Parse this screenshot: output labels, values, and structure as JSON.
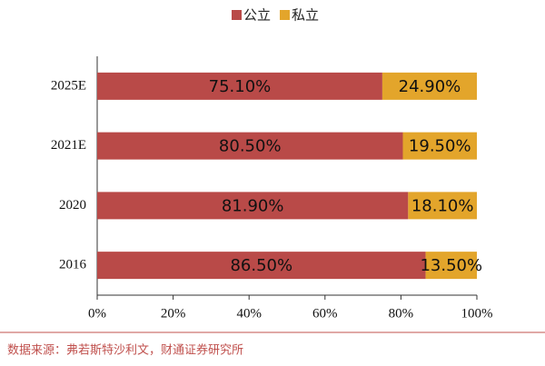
{
  "chart_data": {
    "type": "stacked_barh",
    "categories": [
      "2025E",
      "2021E",
      "2020",
      "2016"
    ],
    "series": [
      {
        "name": "公立",
        "color": "#b94a48",
        "values": [
          75.1,
          80.5,
          81.9,
          86.5
        ],
        "value_labels": [
          "75.10%",
          "80.50%",
          "81.90%",
          "86.50%"
        ]
      },
      {
        "name": "私立",
        "color": "#e3a52b",
        "values": [
          24.9,
          19.5,
          18.1,
          13.5
        ],
        "value_labels": [
          "24.90%",
          "19.50%",
          "18.10%",
          "13.50%"
        ]
      }
    ],
    "xlim": [
      0,
      100
    ],
    "xticks": [
      {
        "value": 0,
        "label": "0%"
      },
      {
        "value": 20,
        "label": "20%"
      },
      {
        "value": 40,
        "label": "40%"
      },
      {
        "value": 60,
        "label": "60%"
      },
      {
        "value": 80,
        "label": "80%"
      },
      {
        "value": 100,
        "label": "100%"
      }
    ],
    "legend": "top",
    "source": "数据来源：弗若斯特沙利文，财通证券研究所"
  }
}
